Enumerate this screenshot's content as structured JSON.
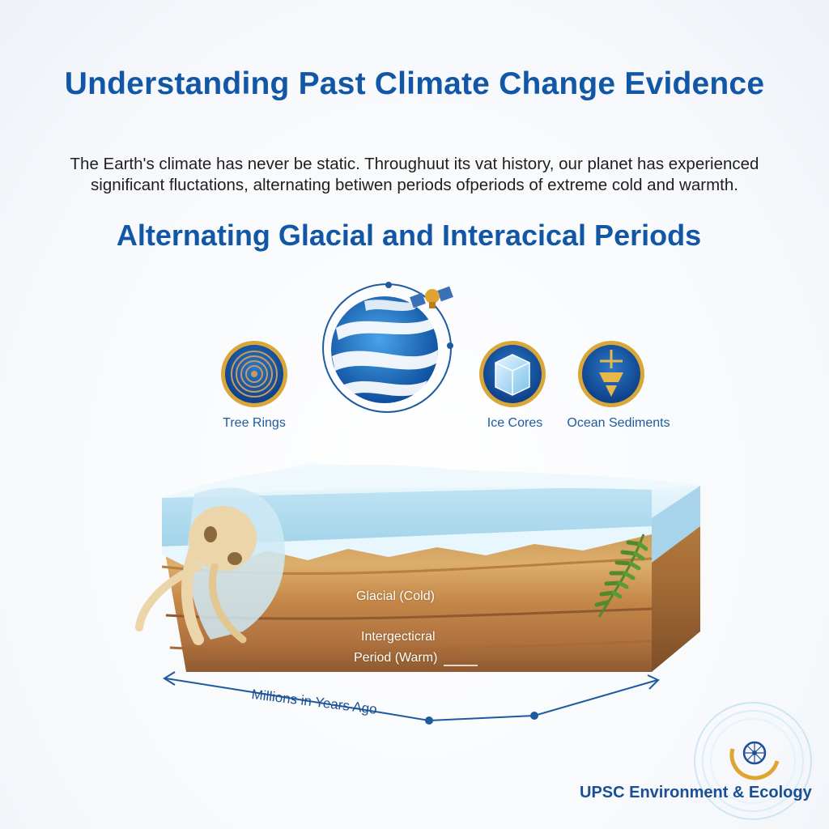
{
  "header": {
    "title": "Understanding Past Climate Change Evidence",
    "intro_line1": "The Earth's climate has never be static. Throughuut its vat history, our planet has experienced",
    "intro_line2": "significant fluctations,  alternating betiwen periods ofperiods of extreme cold and warmth.",
    "subtitle": "Alternating Glacial and Interacical Periods"
  },
  "evidence": {
    "tree_rings": {
      "label": "Tree Rings",
      "icon": "tree-rings-icon"
    },
    "globe": {
      "icon": "globe-satellite-icon"
    },
    "ice_cores": {
      "label": "Ice Cores",
      "icon": "ice-cube-icon"
    },
    "ocean_sediments": {
      "label": "Ocean Sediments",
      "icon": "drill-core-icon"
    }
  },
  "diagram": {
    "glacial_label": "Glacial (Cold)",
    "interglacial_line1": "Intergecticral",
    "interglacial_line2": "Period (Warm)",
    "axis_label": "Millions in Years Ago"
  },
  "brand": {
    "name": "UPSC Environment & Ecology",
    "icon": "ashoka-chakra-icon"
  },
  "colors": {
    "title_blue": "#1257a6",
    "ice": "#cfe8f5",
    "soil_dark": "#a4683a",
    "soil_light": "#d8a764",
    "gold": "#d9a63a"
  }
}
